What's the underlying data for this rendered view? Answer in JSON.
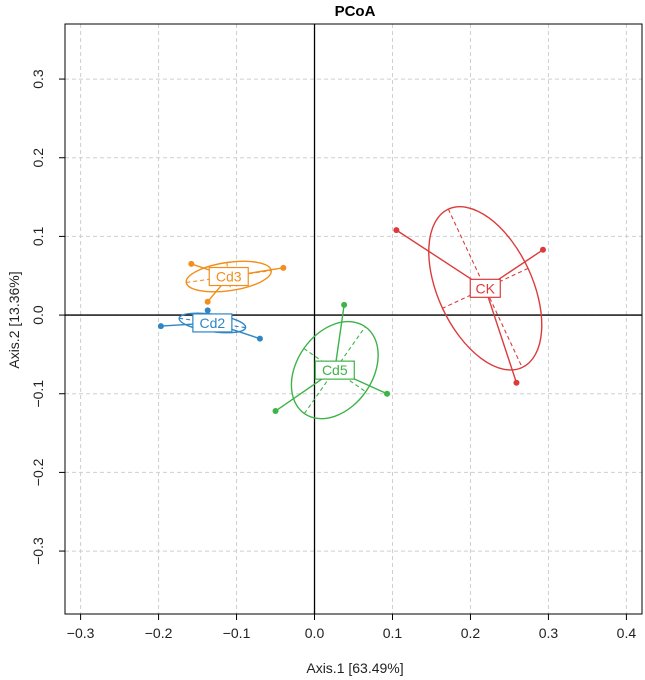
{
  "chart_data": {
    "type": "scatter",
    "title": "PCoA",
    "xlabel": "Axis.1  [63.49%]",
    "ylabel": "Axis.2  [13.36%]",
    "xlim": [
      -0.32,
      0.42
    ],
    "ylim": [
      -0.38,
      0.37
    ],
    "x_ticks": [
      -0.3,
      -0.2,
      -0.1,
      0.0,
      0.1,
      0.2,
      0.3,
      0.4
    ],
    "x_tick_labels": [
      "−0.3",
      "−0.2",
      "−0.1",
      "0.0",
      "0.1",
      "0.2",
      "0.3",
      "0.4"
    ],
    "y_ticks": [
      -0.3,
      -0.2,
      -0.1,
      0.0,
      0.1,
      0.2,
      0.3
    ],
    "y_tick_labels": [
      "−0.3",
      "−0.2",
      "−0.1",
      "0.0",
      "0.1",
      "0.2",
      "0.3"
    ],
    "grid": true,
    "reference_lines": {
      "x": 0,
      "y": 0
    },
    "series": [
      {
        "name": "Cd3",
        "color": "#f28e1c",
        "centroid": [
          -0.11,
          0.049
        ],
        "points": [
          [
            -0.158,
            0.065
          ],
          [
            -0.04,
            0.06
          ],
          [
            -0.137,
            0.017
          ]
        ],
        "ellipse": {
          "rx": 0.055,
          "ry": 0.018,
          "angle": 8
        }
      },
      {
        "name": "Cd2",
        "color": "#2f86c5",
        "centroid": [
          -0.131,
          -0.01
        ],
        "points": [
          [
            -0.197,
            -0.014
          ],
          [
            -0.07,
            -0.03
          ],
          [
            -0.137,
            0.006
          ]
        ],
        "ellipse": {
          "rx": 0.043,
          "ry": 0.011,
          "angle": -8
        }
      },
      {
        "name": "Cd5",
        "color": "#3db34a",
        "centroid": [
          0.026,
          -0.07
        ],
        "points": [
          [
            0.038,
            0.013
          ],
          [
            -0.05,
            -0.122
          ],
          [
            0.093,
            -0.1
          ]
        ],
        "ellipse": {
          "rx": 0.068,
          "ry": 0.048,
          "angle": 55
        }
      },
      {
        "name": "CK",
        "color": "#dc3b3b",
        "centroid": [
          0.219,
          0.034
        ],
        "points": [
          [
            0.105,
            0.108
          ],
          [
            0.293,
            0.083
          ],
          [
            0.259,
            -0.086
          ]
        ],
        "ellipse": {
          "rx": 0.112,
          "ry": 0.06,
          "angle": -65
        }
      }
    ]
  }
}
